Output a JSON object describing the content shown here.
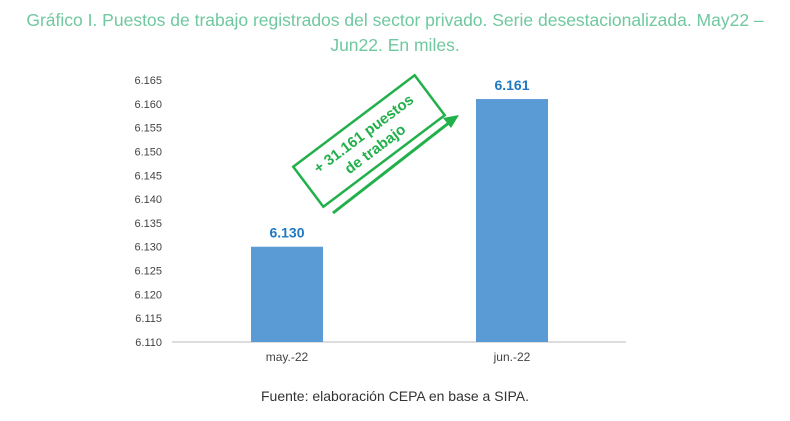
{
  "chart_data": {
    "type": "bar",
    "title": "Gráfico I. Puestos de trabajo registrados del sector privado. Serie desestacionalizada. May22 – Jun22. En miles.",
    "categories": [
      "may.-22",
      "jun.-22"
    ],
    "values": [
      6.13,
      6.161
    ],
    "data_labels": [
      "6.130",
      "6.161"
    ],
    "ylim": [
      6.11,
      6.165
    ],
    "yticks": [
      "6.110",
      "6.115",
      "6.120",
      "6.125",
      "6.130",
      "6.135",
      "6.140",
      "6.145",
      "6.150",
      "6.155",
      "6.160",
      "6.165"
    ],
    "grid": false,
    "annotation": {
      "line1": "+ 31.161 puestos",
      "line2": "de trabajo"
    },
    "source": "Fuente: elaboración CEPA en base a SIPA.",
    "colors": {
      "bar": "#5b9bd5",
      "data_label": "#1f78c1",
      "annotation": "#22b04b",
      "title": "#6fc8a0"
    }
  }
}
